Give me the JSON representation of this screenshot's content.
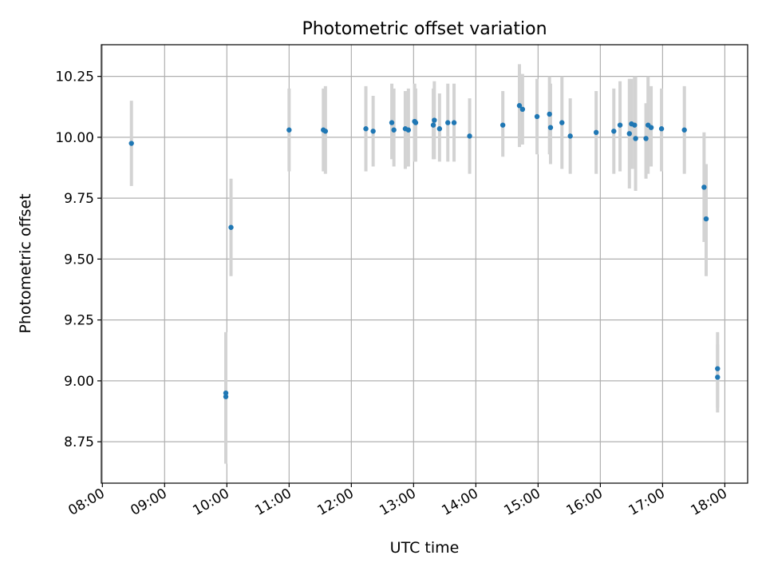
{
  "chart_data": {
    "type": "scatter",
    "title": "Photometric offset variation",
    "xlabel": "UTC time",
    "ylabel": "Photometric offset",
    "x_axis_kind": "time",
    "xlim": [
      "07:59",
      "18:22"
    ],
    "ylim": [
      8.58,
      10.38
    ],
    "x_ticks": [
      "08:00",
      "09:00",
      "10:00",
      "11:00",
      "12:00",
      "13:00",
      "14:00",
      "15:00",
      "16:00",
      "17:00",
      "18:00"
    ],
    "y_ticks": [
      8.75,
      9.0,
      9.25,
      9.5,
      9.75,
      10.0,
      10.25
    ],
    "y_tick_labels": [
      "8.75",
      "9.00",
      "9.25",
      "9.50",
      "9.75",
      "10.00",
      "10.25"
    ],
    "grid": true,
    "colors": {
      "marker": "#1f77b4",
      "errorbar": "#d3d3d3",
      "grid": "#b0b0b0"
    },
    "series": [
      {
        "error_bars": true,
        "points": [
          {
            "t": "08:28",
            "y": 9.975,
            "lo": 9.8,
            "hi": 10.15
          },
          {
            "t": "09:59",
            "y": 8.95,
            "lo": 8.66,
            "hi": 9.2
          },
          {
            "t": "09:59",
            "y": 8.935,
            "lo": 8.72,
            "hi": 9.15
          },
          {
            "t": "10:04",
            "y": 9.63,
            "lo": 9.43,
            "hi": 9.83
          },
          {
            "t": "11:00",
            "y": 10.03,
            "lo": 9.86,
            "hi": 10.2
          },
          {
            "t": "11:33",
            "y": 10.03,
            "lo": 9.86,
            "hi": 10.2
          },
          {
            "t": "11:35",
            "y": 10.025,
            "lo": 9.85,
            "hi": 10.21
          },
          {
            "t": "12:14",
            "y": 10.035,
            "lo": 9.86,
            "hi": 10.21
          },
          {
            "t": "12:21",
            "y": 10.025,
            "lo": 9.88,
            "hi": 10.17
          },
          {
            "t": "12:39",
            "y": 10.06,
            "lo": 9.91,
            "hi": 10.22
          },
          {
            "t": "12:41",
            "y": 10.03,
            "lo": 9.88,
            "hi": 10.2
          },
          {
            "t": "12:52",
            "y": 10.035,
            "lo": 9.87,
            "hi": 10.19
          },
          {
            "t": "12:55",
            "y": 10.03,
            "lo": 9.88,
            "hi": 10.2
          },
          {
            "t": "13:01",
            "y": 10.065,
            "lo": 9.9,
            "hi": 10.22
          },
          {
            "t": "13:02",
            "y": 10.06,
            "lo": 9.9,
            "hi": 10.2
          },
          {
            "t": "13:19",
            "y": 10.05,
            "lo": 9.91,
            "hi": 10.2
          },
          {
            "t": "13:20",
            "y": 10.07,
            "lo": 9.91,
            "hi": 10.23
          },
          {
            "t": "13:25",
            "y": 10.035,
            "lo": 9.9,
            "hi": 10.18
          },
          {
            "t": "13:33",
            "y": 10.06,
            "lo": 9.9,
            "hi": 10.22
          },
          {
            "t": "13:39",
            "y": 10.06,
            "lo": 9.9,
            "hi": 10.22
          },
          {
            "t": "13:54",
            "y": 10.005,
            "lo": 9.85,
            "hi": 10.16
          },
          {
            "t": "14:26",
            "y": 10.05,
            "lo": 9.92,
            "hi": 10.19
          },
          {
            "t": "14:42",
            "y": 10.13,
            "lo": 9.96,
            "hi": 10.3
          },
          {
            "t": "14:45",
            "y": 10.115,
            "lo": 9.97,
            "hi": 10.26
          },
          {
            "t": "14:59",
            "y": 10.085,
            "lo": 9.93,
            "hi": 10.24
          },
          {
            "t": "15:11",
            "y": 10.095,
            "lo": 9.93,
            "hi": 10.25
          },
          {
            "t": "15:12",
            "y": 10.04,
            "lo": 9.89,
            "hi": 10.22
          },
          {
            "t": "15:23",
            "y": 10.06,
            "lo": 9.87,
            "hi": 10.25
          },
          {
            "t": "15:31",
            "y": 10.005,
            "lo": 9.85,
            "hi": 10.16
          },
          {
            "t": "15:56",
            "y": 10.02,
            "lo": 9.85,
            "hi": 10.19
          },
          {
            "t": "16:13",
            "y": 10.025,
            "lo": 9.85,
            "hi": 10.2
          },
          {
            "t": "16:19",
            "y": 10.05,
            "lo": 9.86,
            "hi": 10.23
          },
          {
            "t": "16:28",
            "y": 10.015,
            "lo": 9.79,
            "hi": 10.24
          },
          {
            "t": "16:30",
            "y": 10.055,
            "lo": 9.87,
            "hi": 10.24
          },
          {
            "t": "16:33",
            "y": 10.05,
            "lo": 9.87,
            "hi": 10.25
          },
          {
            "t": "16:34",
            "y": 9.995,
            "lo": 9.78,
            "hi": 10.25
          },
          {
            "t": "16:44",
            "y": 9.995,
            "lo": 9.83,
            "hi": 10.14
          },
          {
            "t": "16:46",
            "y": 10.05,
            "lo": 9.85,
            "hi": 10.25
          },
          {
            "t": "16:49",
            "y": 10.04,
            "lo": 9.88,
            "hi": 10.21
          },
          {
            "t": "16:59",
            "y": 10.035,
            "lo": 9.86,
            "hi": 10.2
          },
          {
            "t": "17:21",
            "y": 10.03,
            "lo": 9.85,
            "hi": 10.21
          },
          {
            "t": "17:40",
            "y": 9.795,
            "lo": 9.57,
            "hi": 10.02
          },
          {
            "t": "17:42",
            "y": 9.665,
            "lo": 9.43,
            "hi": 9.89
          },
          {
            "t": "17:53",
            "y": 9.05,
            "lo": 8.87,
            "hi": 9.2
          },
          {
            "t": "17:53",
            "y": 9.015,
            "lo": 8.89,
            "hi": 9.15
          }
        ]
      }
    ]
  }
}
